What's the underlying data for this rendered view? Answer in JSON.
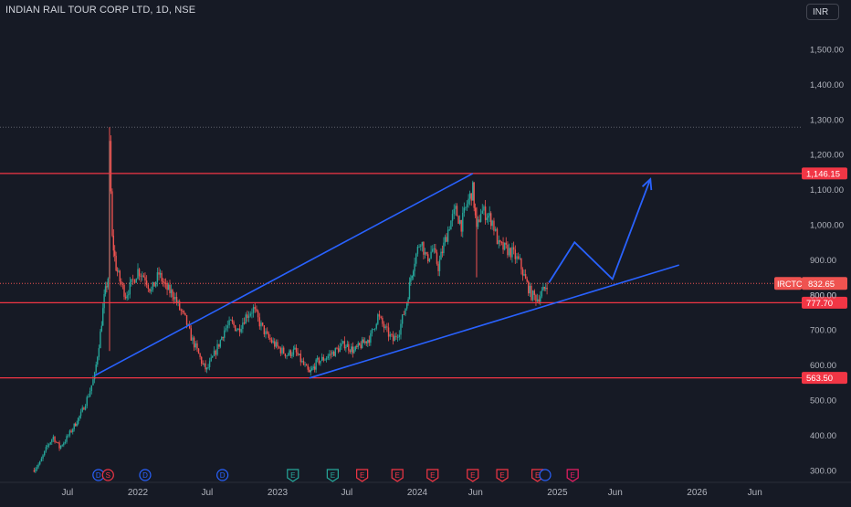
{
  "title": "INDIAN RAIL TOUR CORP LTD, 1D, NSE",
  "currency": "INR",
  "symbol": "IRCTC",
  "colors": {
    "background": "#161a25",
    "grid": "#1e222d",
    "axis_text": "#b2b5be",
    "up": "#26a69a",
    "down": "#ef5350",
    "level": "#f23645",
    "trend": "#2962ff"
  },
  "chart_data": {
    "type": "candlestick",
    "title": "INDIAN RAIL TOUR CORP LTD, 1D, NSE",
    "ylim": [
      280,
      1600
    ],
    "y_ticks": [
      {
        "value": 300,
        "label": "300.00"
      },
      {
        "value": 400,
        "label": "400.00"
      },
      {
        "value": 500,
        "label": "500.00"
      },
      {
        "value": 600,
        "label": "600.00"
      },
      {
        "value": 700,
        "label": "700.00"
      },
      {
        "value": 800,
        "label": "800.00"
      },
      {
        "value": 900,
        "label": "900.00"
      },
      {
        "value": 1000,
        "label": "1,000.00"
      },
      {
        "value": 1100,
        "label": "1,100.00"
      },
      {
        "value": 1200,
        "label": "1,200.00"
      },
      {
        "value": 1300,
        "label": "1,300.00"
      },
      {
        "value": 1400,
        "label": "1,400.00"
      },
      {
        "value": 1500,
        "label": "1,500.00"
      }
    ],
    "x_ticks": [
      {
        "date": "2021-07-01",
        "label": "Jul"
      },
      {
        "date": "2022-01-01",
        "label": "2022"
      },
      {
        "date": "2022-07-01",
        "label": "Jul"
      },
      {
        "date": "2023-01-01",
        "label": "2023"
      },
      {
        "date": "2023-07-01",
        "label": "Jul"
      },
      {
        "date": "2024-01-01",
        "label": "2024"
      },
      {
        "date": "2024-06-01",
        "label": "Jun"
      },
      {
        "date": "2025-01-01",
        "label": "2025"
      },
      {
        "date": "2025-06-01",
        "label": "Jun"
      },
      {
        "date": "2026-01-01",
        "label": "2026"
      },
      {
        "date": "2026-06-01",
        "label": "Jun"
      }
    ],
    "price_path": [
      [
        "2021-04-01",
        300
      ],
      [
        "2021-04-20",
        320
      ],
      [
        "2021-05-10",
        370
      ],
      [
        "2021-05-25",
        395
      ],
      [
        "2021-06-10",
        365
      ],
      [
        "2021-06-25",
        385
      ],
      [
        "2021-07-15",
        420
      ],
      [
        "2021-08-05",
        460
      ],
      [
        "2021-08-25",
        515
      ],
      [
        "2021-09-10",
        570
      ],
      [
        "2021-09-25",
        690
      ],
      [
        "2021-10-05",
        790
      ],
      [
        "2021-10-15",
        850
      ],
      [
        "2021-10-19",
        1220
      ],
      [
        "2021-10-26",
        960
      ],
      [
        "2021-11-05",
        880
      ],
      [
        "2021-11-15",
        840
      ],
      [
        "2021-11-30",
        800
      ],
      [
        "2021-12-15",
        830
      ],
      [
        "2022-01-01",
        870
      ],
      [
        "2022-01-20",
        850
      ],
      [
        "2022-02-05",
        810
      ],
      [
        "2022-02-25",
        860
      ],
      [
        "2022-03-15",
        820
      ],
      [
        "2022-04-05",
        800
      ],
      [
        "2022-04-20",
        760
      ],
      [
        "2022-05-05",
        730
      ],
      [
        "2022-05-20",
        680
      ],
      [
        "2022-06-05",
        640
      ],
      [
        "2022-06-20",
        600
      ],
      [
        "2022-06-30",
        585
      ],
      [
        "2022-07-15",
        620
      ],
      [
        "2022-08-01",
        660
      ],
      [
        "2022-08-15",
        700
      ],
      [
        "2022-09-01",
        720
      ],
      [
        "2022-09-20",
        700
      ],
      [
        "2022-10-10",
        740
      ],
      [
        "2022-10-30",
        760
      ],
      [
        "2022-11-15",
        720
      ],
      [
        "2022-12-05",
        680
      ],
      [
        "2023-01-01",
        650
      ],
      [
        "2023-01-25",
        630
      ],
      [
        "2023-02-15",
        640
      ],
      [
        "2023-03-10",
        600
      ],
      [
        "2023-03-25",
        575
      ],
      [
        "2023-04-15",
        610
      ],
      [
        "2023-05-05",
        620
      ],
      [
        "2023-06-01",
        640
      ],
      [
        "2023-06-25",
        660
      ],
      [
        "2023-07-20",
        640
      ],
      [
        "2023-08-10",
        660
      ],
      [
        "2023-09-01",
        680
      ],
      [
        "2023-09-20",
        740
      ],
      [
        "2023-10-10",
        700
      ],
      [
        "2023-10-30",
        670
      ],
      [
        "2023-11-15",
        700
      ],
      [
        "2023-12-05",
        780
      ],
      [
        "2023-12-15",
        850
      ],
      [
        "2023-12-25",
        900
      ],
      [
        "2024-01-10",
        960
      ],
      [
        "2024-01-25",
        900
      ],
      [
        "2024-02-10",
        930
      ],
      [
        "2024-02-25",
        880
      ],
      [
        "2024-03-10",
        940
      ],
      [
        "2024-03-25",
        1000
      ],
      [
        "2024-04-10",
        1040
      ],
      [
        "2024-04-25",
        1000
      ],
      [
        "2024-05-10",
        1060
      ],
      [
        "2024-05-25",
        1100
      ],
      [
        "2024-06-04",
        980
      ],
      [
        "2024-06-15",
        1040
      ],
      [
        "2024-07-01",
        1030
      ],
      [
        "2024-07-15",
        1010
      ],
      [
        "2024-08-01",
        940
      ],
      [
        "2024-08-20",
        930
      ],
      [
        "2024-09-05",
        920
      ],
      [
        "2024-09-25",
        890
      ],
      [
        "2024-10-10",
        840
      ],
      [
        "2024-10-25",
        800
      ],
      [
        "2024-11-10",
        790
      ],
      [
        "2024-11-25",
        810
      ],
      [
        "2024-12-05",
        832.65
      ]
    ],
    "horizontal_levels": [
      {
        "value": 1146.15,
        "label": "1,146.15"
      },
      {
        "value": 777.7,
        "label": "777.70"
      },
      {
        "value": 563.5,
        "label": "563.50"
      }
    ],
    "current_price": {
      "value": 832.65,
      "label": "832.65"
    },
    "extra_price_label": {
      "value": 800,
      "label": "800.00"
    },
    "trendlines": [
      {
        "from": [
          "2021-09-10",
          570
        ],
        "to": [
          "2024-05-25",
          1146
        ]
      },
      {
        "from": [
          "2023-03-25",
          563
        ],
        "to": [
          "2025-11-15",
          885
        ]
      }
    ],
    "projection_path": [
      [
        "2024-12-10",
        835
      ],
      [
        "2025-02-15",
        950
      ],
      [
        "2025-05-25",
        845
      ],
      [
        "2025-09-01",
        1130
      ]
    ],
    "event_markers": [
      {
        "date": "2021-09-20",
        "label": "D",
        "color": "#2962ff"
      },
      {
        "date": "2021-10-15",
        "label": "S",
        "color": "#f23645"
      },
      {
        "date": "2022-01-20",
        "label": "D",
        "color": "#2962ff"
      },
      {
        "date": "2022-08-10",
        "label": "D",
        "color": "#2962ff"
      },
      {
        "date": "2023-02-10",
        "label": "E",
        "color": "#26a69a"
      },
      {
        "date": "2023-05-25",
        "label": "E",
        "color": "#26a69a"
      },
      {
        "date": "2023-08-10",
        "label": "E",
        "color": "#f23645"
      },
      {
        "date": "2023-11-10",
        "label": "E",
        "color": "#f23645"
      },
      {
        "date": "2024-02-10",
        "label": "E",
        "color": "#f23645"
      },
      {
        "date": "2024-05-25",
        "label": "E",
        "color": "#f23645"
      },
      {
        "date": "2024-08-10",
        "label": "E",
        "color": "#f23645"
      },
      {
        "date": "2024-11-10",
        "label": "E",
        "color": "#f23645"
      },
      {
        "date": "2024-11-30",
        "label": "",
        "color": "#2962ff"
      },
      {
        "date": "2025-02-10",
        "label": "E",
        "color": "#e91e63"
      }
    ]
  }
}
